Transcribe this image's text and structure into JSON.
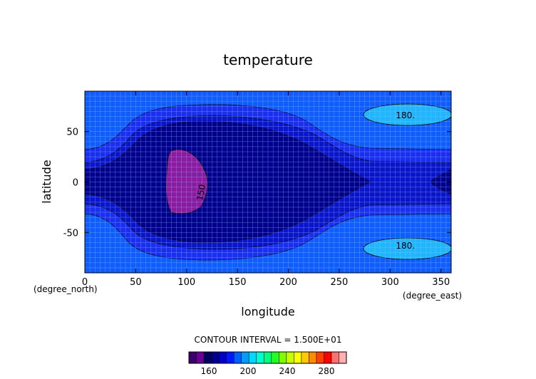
{
  "chart_data": {
    "type": "heatmap",
    "title": "temperature",
    "xlabel": "longitude",
    "ylabel": "latitude",
    "x_unit": "(degree_east)",
    "y_unit": "(degree_north)",
    "xlim": [
      0,
      360
    ],
    "ylim": [
      -90,
      90
    ],
    "x_ticks": [
      0,
      50,
      100,
      150,
      200,
      250,
      300,
      350
    ],
    "y_ticks": [
      -50,
      0,
      50
    ],
    "grid": true,
    "contour_interval_text": "CONTOUR INTERVAL = 1.500E+01",
    "contour_labels": [
      {
        "text": "180.",
        "x": 315,
        "y": 66
      },
      {
        "text": "180.",
        "x": 315,
        "y": -63
      },
      {
        "text": "150",
        "x": 117,
        "y": -8
      }
    ],
    "colorbar": {
      "colors": [
        "#3c006e",
        "#6a009a",
        "#000060",
        "#00008c",
        "#0000c8",
        "#0018ff",
        "#0060ff",
        "#009cff",
        "#00d8ff",
        "#00ffd0",
        "#00ff80",
        "#20ff20",
        "#80ff00",
        "#c8ff00",
        "#ffff00",
        "#ffc800",
        "#ff8c00",
        "#ff4000",
        "#ff0000",
        "#ff7070",
        "#ffb0b0"
      ],
      "tick_labels": [
        "160",
        "200",
        "240",
        "280"
      ]
    }
  }
}
